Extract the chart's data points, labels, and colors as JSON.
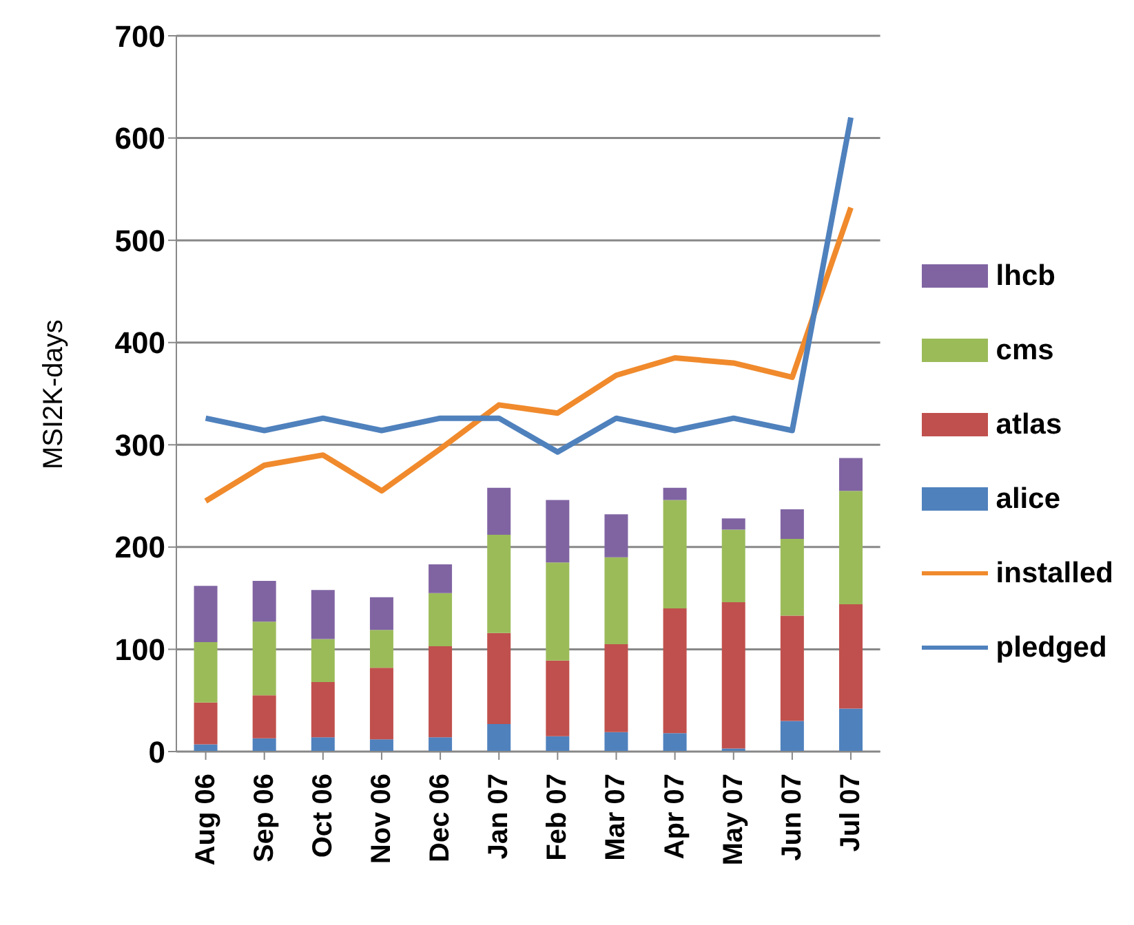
{
  "chart_data": {
    "type": "bar",
    "stacked": true,
    "ylabel": "MSI2K-days",
    "categories": [
      "Aug 06",
      "Sep 06",
      "Oct 06",
      "Nov 06",
      "Dec 06",
      "Jan 07",
      "Feb 07",
      "Mar 07",
      "Apr 07",
      "May 07",
      "Jun 07",
      "Jul 07"
    ],
    "series": [
      {
        "name": "alice",
        "color": "#4f81bd",
        "values": [
          7,
          13,
          14,
          12,
          14,
          27,
          15,
          19,
          18,
          3,
          30,
          42
        ]
      },
      {
        "name": "atlas",
        "color": "#c0504d",
        "values": [
          41,
          42,
          54,
          70,
          89,
          89,
          74,
          86,
          122,
          143,
          103,
          102
        ]
      },
      {
        "name": "cms",
        "color": "#9bbb59",
        "values": [
          59,
          72,
          42,
          37,
          52,
          96,
          96,
          85,
          106,
          71,
          75,
          111
        ]
      },
      {
        "name": "lhcb",
        "color": "#8064a2",
        "values": [
          55,
          40,
          48,
          32,
          28,
          46,
          61,
          42,
          12,
          11,
          29,
          32
        ]
      },
      {
        "name": "installed",
        "type": "line",
        "color": "#f08a2c",
        "values": [
          245,
          280,
          290,
          255,
          296,
          339,
          331,
          368,
          385,
          380,
          366,
          532
        ]
      },
      {
        "name": "pledged",
        "type": "line",
        "color": "#4f81bd",
        "values": [
          326,
          314,
          326,
          314,
          326,
          326,
          293,
          326,
          314,
          326,
          314,
          620
        ]
      }
    ],
    "ylim": [
      0,
      700
    ],
    "yticks": [
      0,
      100,
      200,
      300,
      400,
      500,
      600,
      700
    ],
    "grid": "y",
    "legend": "right",
    "marker": "none",
    "line_style": "solid"
  }
}
